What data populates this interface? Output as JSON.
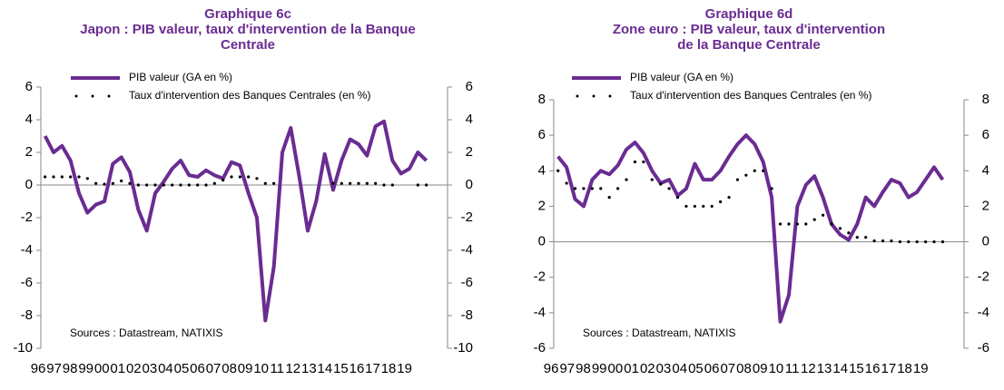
{
  "chart_data": [
    {
      "type": "line",
      "title": [
        "Graphique 6c",
        "Japon : PIB valeur, taux d'intervention de la Banque",
        "Centrale"
      ],
      "source": "Sources : Datastream,  NATIXIS",
      "categories": [
        "96",
        null,
        "97",
        null,
        "98",
        null,
        "99",
        null,
        "00",
        null,
        "01",
        null,
        "02",
        null,
        "03",
        null,
        "04",
        null,
        "05",
        null,
        "06",
        null,
        "07",
        null,
        "08",
        null,
        "09",
        null,
        "10",
        null,
        "11",
        null,
        "12",
        null,
        "13",
        null,
        "14",
        null,
        "15",
        null,
        "16",
        null,
        "17",
        null,
        "18",
        null,
        "19",
        null
      ],
      "series": [
        {
          "name": "PIB valeur (GA en %)",
          "color": "#6a2c91",
          "marker": "line",
          "values": [
            3.0,
            2.0,
            2.4,
            1.5,
            -0.5,
            -1.7,
            -1.2,
            -1.0,
            1.3,
            1.7,
            0.8,
            -1.5,
            -2.8,
            -0.5,
            0.2,
            1.0,
            1.5,
            0.6,
            0.5,
            0.9,
            0.6,
            0.4,
            1.4,
            1.2,
            -0.5,
            -2.0,
            -8.3,
            -5.0,
            2.0,
            3.5,
            0.5,
            -2.8,
            -1.0,
            1.9,
            -0.3,
            1.5,
            2.8,
            2.5,
            1.8,
            3.6,
            3.9,
            1.5,
            0.7,
            1.0,
            2.0,
            1.5,
            null,
            null
          ]
        },
        {
          "name": "Taux d'intervention des Banques Centrales (en %)",
          "color": "#000000",
          "marker": "dots",
          "values": [
            0.5,
            0.5,
            0.5,
            0.5,
            0.5,
            0.4,
            0.1,
            0.05,
            0.1,
            0.25,
            0.1,
            0.0,
            0.0,
            0.0,
            0.0,
            0.0,
            0.0,
            0.0,
            0.0,
            0.0,
            0.1,
            0.3,
            0.5,
            0.5,
            0.5,
            0.4,
            0.1,
            0.1,
            null,
            null,
            null,
            null,
            null,
            null,
            0.1,
            0.1,
            0.1,
            0.1,
            0.1,
            0.1,
            0.0,
            0.0,
            null,
            null,
            0.0,
            0.0,
            null,
            null
          ]
        }
      ],
      "ylim": [
        -10,
        6
      ],
      "yticks": [
        -10,
        -8,
        -6,
        -4,
        -2,
        0,
        2,
        4,
        6
      ],
      "y2lim": [
        -10,
        6
      ],
      "y2ticks": [
        -10,
        -8,
        -6,
        -4,
        -2,
        0,
        2,
        4,
        6
      ]
    },
    {
      "type": "line",
      "title": [
        "Graphique 6d",
        "Zone euro : PIB valeur, taux d'intervention",
        "de la Banque Centrale"
      ],
      "source": "Sources : Datastream,  NATIXIS",
      "categories": [
        "96",
        null,
        "97",
        null,
        "98",
        null,
        "99",
        null,
        "00",
        null,
        "01",
        null,
        "02",
        null,
        "03",
        null,
        "04",
        null,
        "05",
        null,
        "06",
        null,
        "07",
        null,
        "08",
        null,
        "09",
        null,
        "10",
        null,
        "11",
        null,
        "12",
        null,
        "13",
        null,
        "14",
        null,
        "15",
        null,
        "16",
        null,
        "17",
        null,
        "18",
        null,
        "19",
        null
      ],
      "series": [
        {
          "name": "PIB valeur (GA en %)",
          "color": "#6a2c91",
          "marker": "line",
          "values": [
            4.8,
            4.2,
            2.4,
            2.0,
            3.5,
            4.0,
            3.8,
            4.3,
            5.2,
            5.6,
            5.0,
            4.0,
            3.3,
            3.5,
            2.6,
            3.0,
            4.4,
            3.5,
            3.5,
            4.0,
            4.8,
            5.5,
            6.0,
            5.5,
            4.5,
            2.5,
            -4.5,
            -3.0,
            2.0,
            3.2,
            3.7,
            2.5,
            1.0,
            0.4,
            0.1,
            1.0,
            2.5,
            2.0,
            2.8,
            3.5,
            3.3,
            2.5,
            2.8,
            3.5,
            4.2,
            3.5,
            null,
            null
          ]
        },
        {
          "name": "Taux d'intervention des Banques Centrales (en %)",
          "color": "#000000",
          "marker": "dots",
          "values": [
            4.0,
            3.3,
            3.0,
            3.0,
            3.0,
            3.0,
            2.5,
            3.0,
            3.5,
            4.5,
            4.5,
            3.5,
            3.25,
            3.0,
            2.5,
            2.0,
            2.0,
            2.0,
            2.0,
            2.25,
            2.5,
            3.5,
            3.75,
            4.0,
            4.0,
            3.0,
            1.0,
            1.0,
            1.0,
            1.0,
            1.25,
            1.5,
            1.0,
            0.75,
            0.5,
            0.25,
            0.25,
            0.05,
            0.05,
            0.05,
            0.0,
            0.0,
            0.0,
            0.0,
            0.0,
            0.0,
            null,
            null
          ]
        }
      ],
      "ylim": [
        -6,
        8
      ],
      "yticks": [
        -6,
        -4,
        -2,
        0,
        2,
        4,
        6,
        8
      ],
      "y2lim": [
        -6,
        8
      ],
      "y2ticks": [
        -6,
        -4,
        -2,
        0,
        2,
        4,
        6,
        8
      ]
    }
  ]
}
